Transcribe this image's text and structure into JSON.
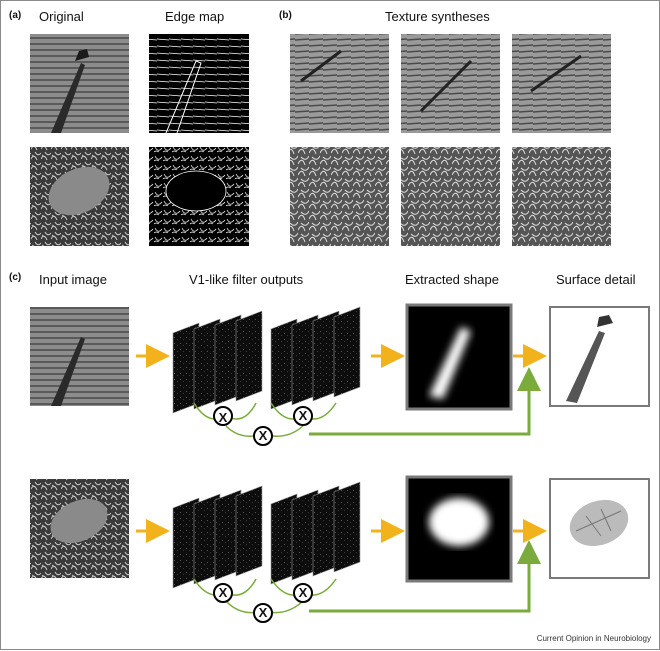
{
  "panels": {
    "a": "(a)",
    "b": "(b)",
    "c": "(c)"
  },
  "headers": {
    "original": "Original",
    "edge_map": "Edge map",
    "texture_syntheses": "Texture syntheses",
    "input_image": "Input image",
    "filter_outputs": "V1-like filter outputs",
    "extracted_shape": "Extracted shape",
    "surface_detail": "Surface detail"
  },
  "multiply_symbol": "X",
  "credit": "Current Opinion in Neurobiology",
  "colors": {
    "arrow_yellow": "#f2b21b",
    "arrow_green": "#7aab3c",
    "frame_gray": "#7a7a7a"
  }
}
